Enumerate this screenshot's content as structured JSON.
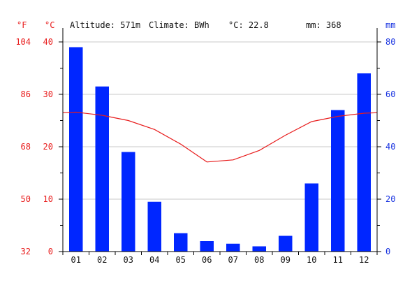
{
  "header": {
    "altitude_text": "Altitude: 571m",
    "climate_text": "Climate: BWh",
    "temp_text": "°C: 22.8",
    "precip_text": "mm: 368"
  },
  "units": {
    "fahrenheit": "°F",
    "celsius": "°C",
    "millimeters": "mm"
  },
  "colors": {
    "precip_bar": "#0026ff",
    "temperature_line": "#e81c1c",
    "fahrenheit_axis": "#e81c1c",
    "celsius_axis": "#e81c1c",
    "precip_axis": "#1530e0",
    "grid": "#c8c8c8"
  },
  "chart_data": {
    "type": "bar",
    "categories": [
      "01",
      "02",
      "03",
      "04",
      "05",
      "06",
      "07",
      "08",
      "09",
      "10",
      "11",
      "12"
    ],
    "series": [
      {
        "type": "bar",
        "axis": "right",
        "values": [
          78,
          63,
          38,
          19,
          7,
          4,
          3,
          2,
          6,
          26,
          54,
          68
        ]
      },
      {
        "type": "line",
        "axis": "left",
        "values": [
          26.6,
          26.0,
          25.0,
          23.3,
          20.5,
          17.1,
          17.5,
          19.3,
          22.2,
          24.8,
          25.8,
          26.4
        ]
      }
    ],
    "y_left": {
      "label": "°C",
      "ylim": [
        0,
        40
      ],
      "ticks": [
        0,
        10,
        20,
        30,
        40
      ]
    },
    "y_left_outer": {
      "label": "°F",
      "ticks": [
        32,
        50,
        68,
        86,
        104
      ]
    },
    "y_right": {
      "label": "mm",
      "ylim": [
        0,
        80
      ],
      "ticks": [
        0,
        20,
        40,
        60,
        80
      ]
    },
    "grid": true
  }
}
